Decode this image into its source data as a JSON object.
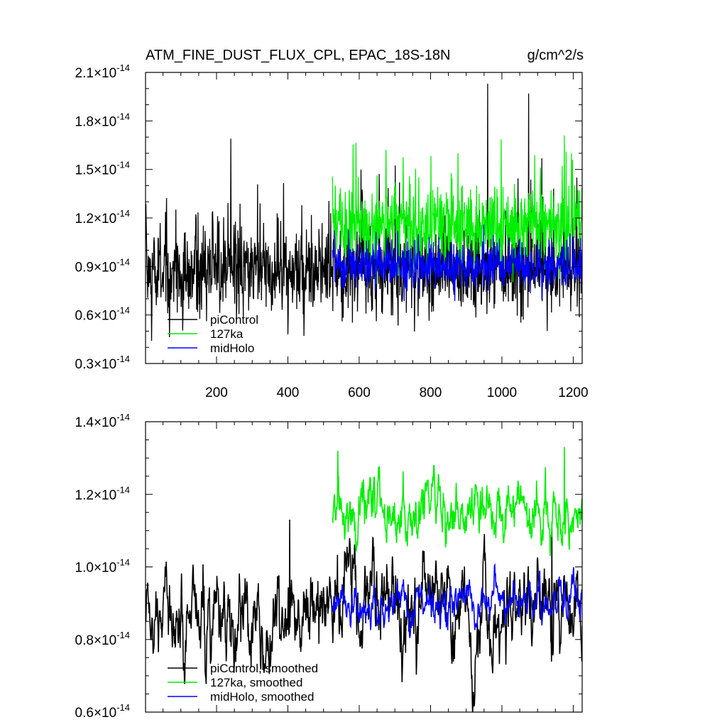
{
  "chart_data": [
    {
      "type": "line",
      "title": "ATM_FINE_DUST_FLUX_CPL, EPAC_18S-18N",
      "units": "g/cm^2/s",
      "xlim": [
        1,
        1225
      ],
      "ylim": [
        3e-15,
        2.1e-14
      ],
      "x_ticks": [
        200,
        400,
        600,
        800,
        1000,
        1200
      ],
      "y_ticks": [
        {
          "mant": "0.3",
          "exp": "-14"
        },
        {
          "mant": "0.6",
          "exp": "-14"
        },
        {
          "mant": "0.9",
          "exp": "-14"
        },
        {
          "mant": "1.2",
          "exp": "-14"
        },
        {
          "mant": "1.5",
          "exp": "-14"
        },
        {
          "mant": "1.8",
          "exp": "-14"
        },
        {
          "mant": "2.1",
          "exp": "-14"
        }
      ],
      "legend_location": "bottom-left",
      "series": [
        {
          "name": "piControl",
          "color": "#000000",
          "x_range": [
            1,
            1225
          ],
          "mean": 8.7e-15,
          "std": 1.6e-15,
          "peaks": [
            [
              240,
              1.69e-14
            ],
            [
              960,
              2.03e-14
            ],
            [
              1075,
              1.97e-14
            ],
            [
              605,
              1.5e-14
            ]
          ]
        },
        {
          "name": "127ka",
          "color": "#00ee00",
          "x_range": [
            525,
            1225
          ],
          "mean": 1.15e-14,
          "std": 1.5e-15,
          "peaks": [
            [
              675,
              1.62e-14
            ],
            [
              1175,
              1.71e-14
            ],
            [
              1195,
              1.6e-14
            ]
          ]
        },
        {
          "name": "midHolo",
          "color": "#0000ff",
          "x_range": [
            525,
            1225
          ],
          "mean": 9e-15,
          "std": 8e-16,
          "peaks": []
        }
      ]
    },
    {
      "type": "line",
      "title": "",
      "xlim": [
        1,
        1225
      ],
      "ylim": [
        6e-15,
        1.4e-14
      ],
      "x_ticks": [
        200,
        400,
        600,
        800,
        1000,
        1200
      ],
      "y_ticks": [
        {
          "mant": "0.6",
          "exp": "-14"
        },
        {
          "mant": "0.8",
          "exp": "-14"
        },
        {
          "mant": "1.0",
          "exp": "-14"
        },
        {
          "mant": "1.2",
          "exp": "-14"
        },
        {
          "mant": "1.4",
          "exp": "-14"
        }
      ],
      "legend_location": "bottom-left",
      "series": [
        {
          "name": "piControl, smoothed",
          "color": "#000000",
          "x_range": [
            1,
            1225
          ],
          "mean": 8.8e-15,
          "std": 7e-16,
          "peaks": [
            [
              405,
              1.13e-14
            ],
            [
              1140,
              1.12e-14
            ]
          ]
        },
        {
          "name": "127ka, smoothed",
          "color": "#00ee00",
          "x_range": [
            525,
            1225
          ],
          "mean": 1.17e-14,
          "std": 4.5e-16,
          "peaks": [
            [
              540,
              1.32e-14
            ],
            [
              1175,
              1.33e-14
            ]
          ]
        },
        {
          "name": "midHolo, smoothed",
          "color": "#0000ff",
          "x_range": [
            525,
            1225
          ],
          "mean": 9e-15,
          "std": 3e-16,
          "peaks": []
        }
      ]
    }
  ]
}
